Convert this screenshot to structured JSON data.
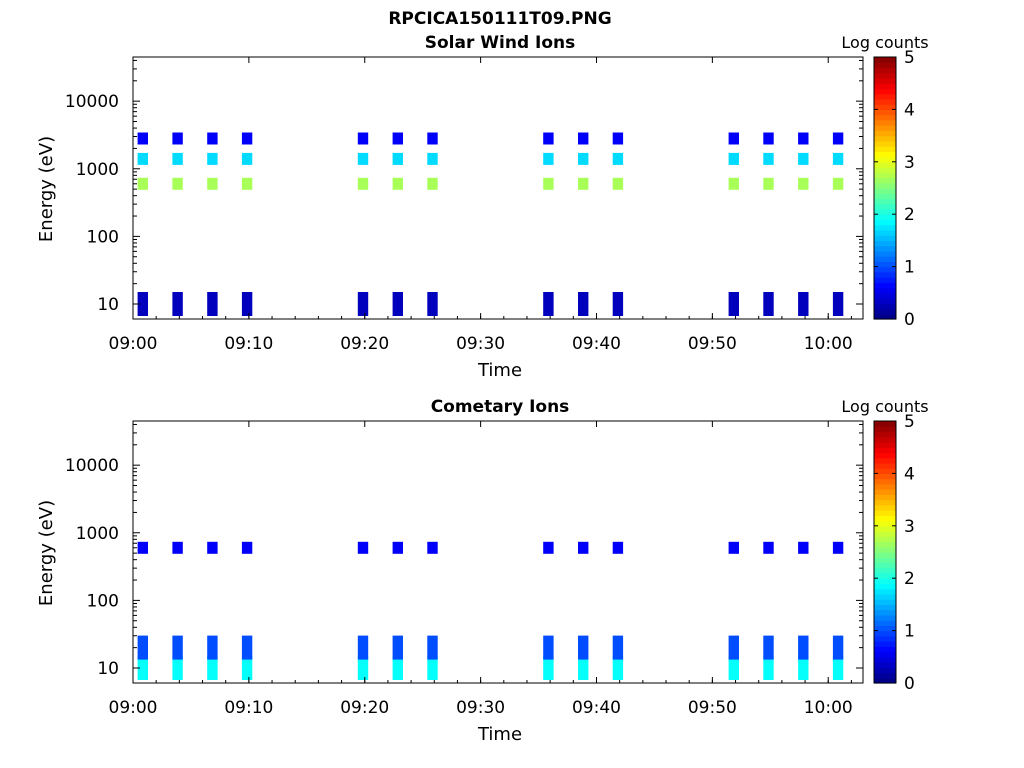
{
  "figure_title": "RPCICA150111T09.PNG",
  "chart_data": [
    {
      "type": "heatmap",
      "title": "Solar Wind Ions",
      "xlabel": "Time",
      "ylabel": "Energy (eV)",
      "x_scale": "time",
      "y_scale": "log",
      "xlim": [
        "09:00",
        "10:03"
      ],
      "ylim": [
        6,
        45000
      ],
      "x_ticks": [
        "09:00",
        "09:10",
        "09:20",
        "09:30",
        "09:40",
        "09:50",
        "10:00"
      ],
      "y_ticks": [
        10,
        100,
        1000,
        10000
      ],
      "y_tick_labels": [
        "10",
        "100",
        "1000",
        "10000"
      ],
      "colorbar": {
        "label": "Log counts",
        "range": [
          0,
          5
        ],
        "ticks": [
          "0",
          "1",
          "2",
          "3",
          "4",
          "5"
        ],
        "colormap": "jet"
      },
      "bursts_start_times": [
        "09:00",
        "09:03",
        "09:06",
        "09:09",
        "09:19",
        "09:22",
        "09:25",
        "09:35",
        "09:38",
        "09:41",
        "09:51",
        "09:54",
        "09:57",
        "10:00"
      ],
      "bands": [
        {
          "energy_eV": 600,
          "log_counts": 2.7
        },
        {
          "energy_eV": 1400,
          "log_counts": 1.7
        },
        {
          "energy_eV": 2800,
          "log_counts": 0.6
        },
        {
          "energy_eV": 10,
          "log_counts": 0.3
        }
      ]
    },
    {
      "type": "heatmap",
      "title": "Cometary Ions",
      "xlabel": "Time",
      "ylabel": "Energy (eV)",
      "x_scale": "time",
      "y_scale": "log",
      "xlim": [
        "09:00",
        "10:03"
      ],
      "ylim": [
        6,
        45000
      ],
      "x_ticks": [
        "09:00",
        "09:10",
        "09:20",
        "09:30",
        "09:40",
        "09:50",
        "10:00"
      ],
      "y_ticks": [
        10,
        100,
        1000,
        10000
      ],
      "y_tick_labels": [
        "10",
        "100",
        "1000",
        "10000"
      ],
      "colorbar": {
        "label": "Log counts",
        "range": [
          0,
          5
        ],
        "ticks": [
          "0",
          "1",
          "2",
          "3",
          "4",
          "5"
        ],
        "colormap": "jet"
      },
      "bursts_start_times": [
        "09:00",
        "09:03",
        "09:06",
        "09:09",
        "09:19",
        "09:22",
        "09:25",
        "09:35",
        "09:38",
        "09:41",
        "09:51",
        "09:54",
        "09:57",
        "10:00"
      ],
      "bands": [
        {
          "energy_eV": 600,
          "log_counts": 0.6
        },
        {
          "energy_eV": 10,
          "log_counts": 1.9
        },
        {
          "energy_eV": 20,
          "log_counts": 1.0
        }
      ]
    }
  ],
  "colors": {
    "axis": "#000000",
    "background": "#ffffff"
  }
}
